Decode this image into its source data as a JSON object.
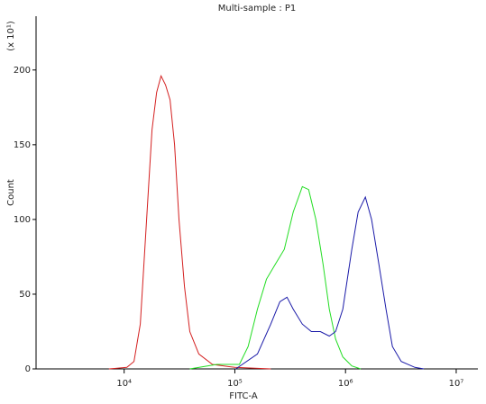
{
  "chart_data": {
    "type": "line",
    "title": "Multi-sample : P1",
    "x_label": "FITC-A",
    "y_label": "Count",
    "y_multiplier": "(x 10¹)",
    "x_scale": "log",
    "xlim": [
      1600,
      15700000
    ],
    "xticks": [
      {
        "value": 10000,
        "label": "10⁴"
      },
      {
        "value": 100000,
        "label": "10⁵"
      },
      {
        "value": 1000000,
        "label": "10⁶"
      },
      {
        "value": 10000000,
        "label": "10⁷"
      }
    ],
    "ylim": [
      0,
      236
    ],
    "yticks": [
      0,
      50,
      100,
      150,
      200
    ],
    "series": [
      {
        "name": "Red",
        "color": "#d42020",
        "x": [
          7280,
          10570,
          12280,
          14000,
          15960,
          17870,
          19630,
          21550,
          23660,
          26000,
          28520,
          31300,
          35060,
          39200,
          47300,
          62700,
          100000,
          211000
        ],
        "values": [
          0,
          1,
          5,
          30,
          100,
          160,
          185,
          196,
          190,
          180,
          150,
          100,
          55,
          25,
          10,
          3,
          1,
          0
        ]
      },
      {
        "name": "Green",
        "color": "#22dd22",
        "x": [
          39200,
          68700,
          110000,
          132000,
          160000,
          193000,
          232000,
          280000,
          337000,
          407000,
          464000,
          539000,
          627000,
          714000,
          814000,
          946000,
          1140000,
          1370000
        ],
        "values": [
          0,
          3,
          3,
          15,
          40,
          60,
          70,
          80,
          105,
          122,
          120,
          100,
          70,
          40,
          20,
          8,
          2,
          0
        ]
      },
      {
        "name": "Blue",
        "color": "#1a1aa8",
        "x": [
          101900,
          160000,
          211000,
          255000,
          296000,
          337000,
          407000,
          491000,
          592000,
          714000,
          814000,
          946000,
          1140000,
          1300000,
          1510000,
          1720000,
          2000000,
          2320000,
          2650000,
          3190000,
          4230000,
          5100000
        ],
        "values": [
          0,
          10,
          30,
          45,
          48,
          40,
          30,
          25,
          25,
          22,
          25,
          40,
          80,
          105,
          115,
          100,
          70,
          40,
          15,
          5,
          1,
          0
        ]
      }
    ]
  }
}
